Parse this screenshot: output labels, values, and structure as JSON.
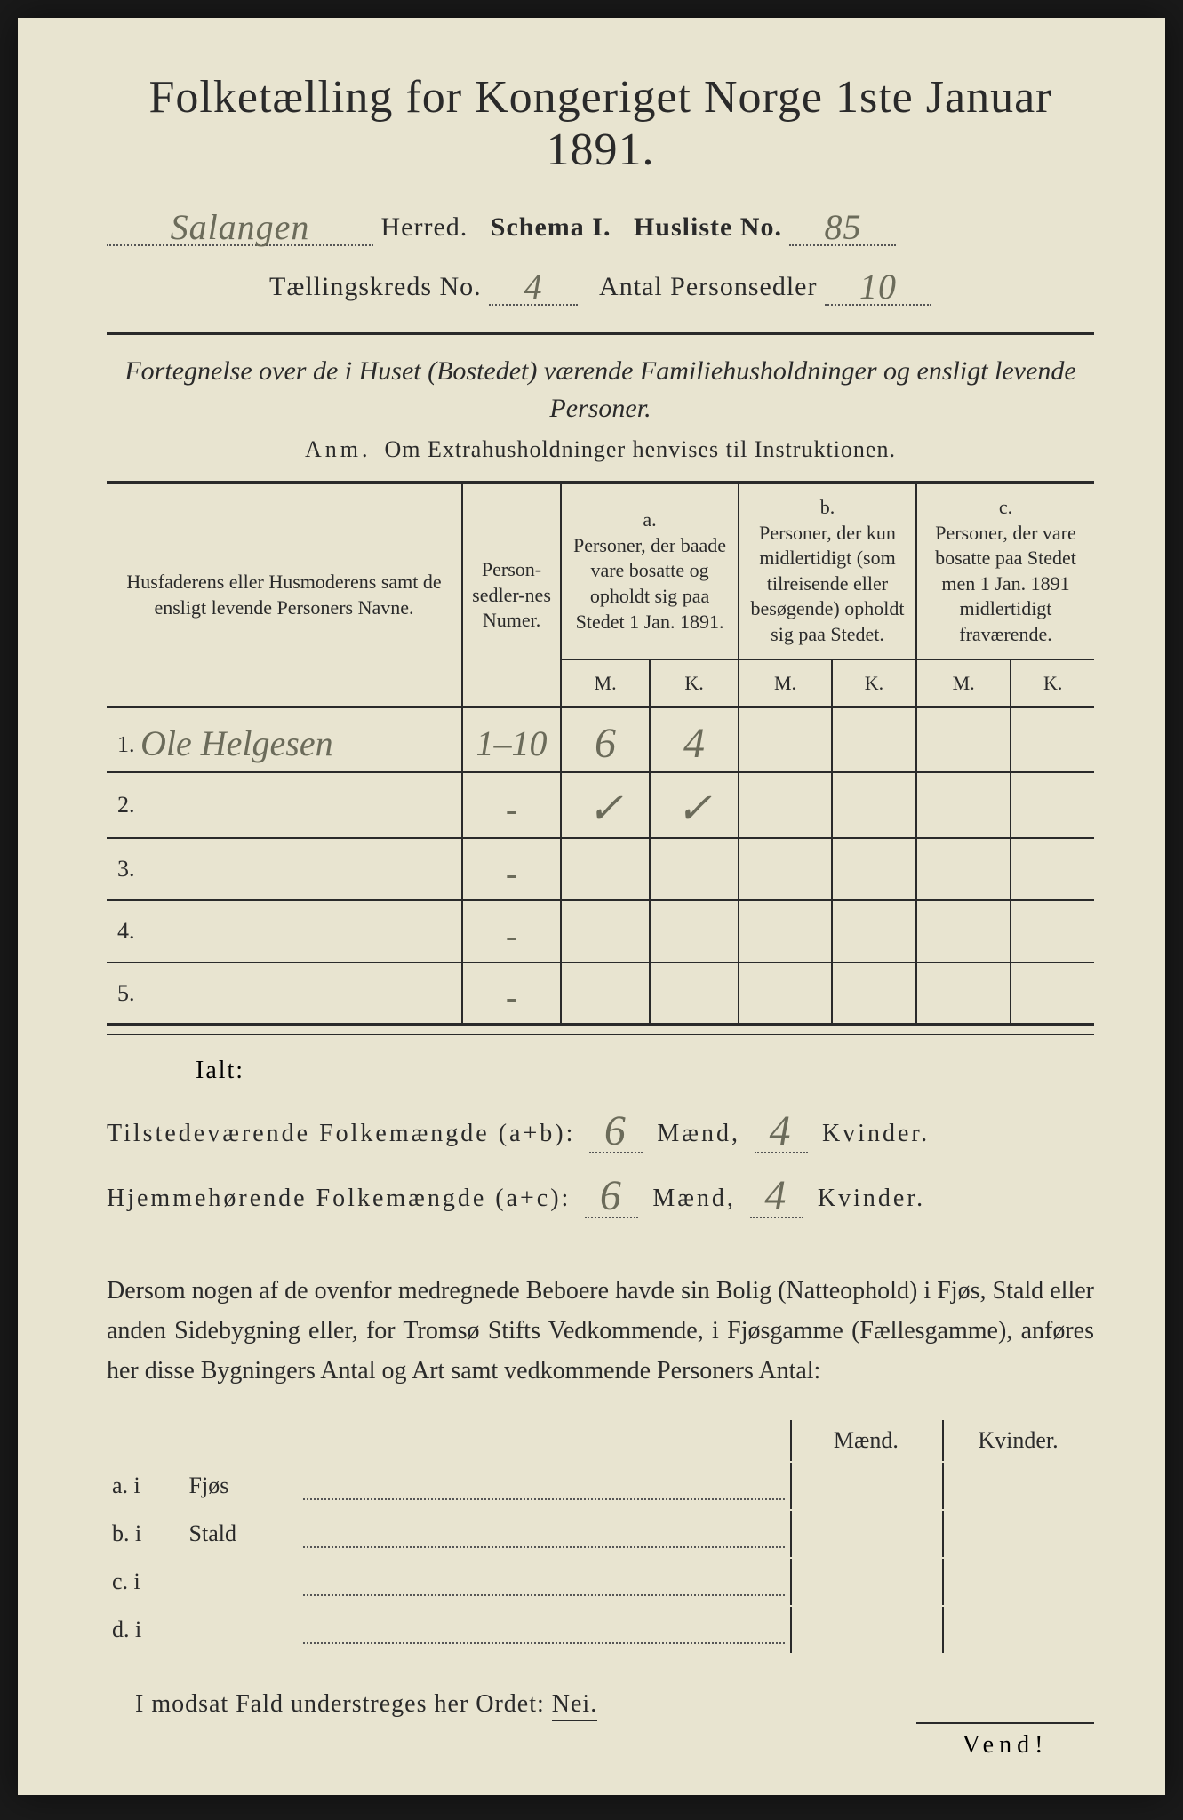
{
  "title": "Folketælling for Kongeriget Norge 1ste Januar 1891.",
  "header": {
    "herred_value": "Salangen",
    "herred_label": "Herred.",
    "schema_label": "Schema I.",
    "husliste_label": "Husliste No.",
    "husliste_value": "85",
    "kreds_label": "Tællingskreds No.",
    "kreds_value": "4",
    "personsedler_label": "Antal Personsedler",
    "personsedler_value": "10"
  },
  "subtitle": "Fortegnelse over de i Huset (Bostedet) værende Familiehusholdninger og ensligt levende Personer.",
  "anm_label": "Anm.",
  "anm_text": "Om Extrahusholdninger henvises til Instruktionen.",
  "columns": {
    "name": "Husfaderens eller Husmoderens samt de ensligt levende Personers Navne.",
    "num": "Person-sedler-nes Numer.",
    "a_label": "a.",
    "a_text": "Personer, der baade vare bosatte og opholdt sig paa Stedet 1 Jan. 1891.",
    "b_label": "b.",
    "b_text": "Personer, der kun midlertidigt (som tilreisende eller besøgende) opholdt sig paa Stedet.",
    "c_label": "c.",
    "c_text": "Personer, der vare bosatte paa Stedet men 1 Jan. 1891 midlertidigt fraværende.",
    "m": "M.",
    "k": "K."
  },
  "rows": [
    {
      "n": "1.",
      "name": "Ole Helgesen",
      "num": "1–10",
      "aM": "6",
      "aK": "4",
      "bM": "",
      "bK": "",
      "cM": "",
      "cK": ""
    },
    {
      "n": "2.",
      "name": "",
      "num": "-",
      "aM": "✓",
      "aK": "✓",
      "bM": "",
      "bK": "",
      "cM": "",
      "cK": ""
    },
    {
      "n": "3.",
      "name": "",
      "num": "-",
      "aM": "",
      "aK": "",
      "bM": "",
      "bK": "",
      "cM": "",
      "cK": ""
    },
    {
      "n": "4.",
      "name": "",
      "num": "-",
      "aM": "",
      "aK": "",
      "bM": "",
      "bK": "",
      "cM": "",
      "cK": ""
    },
    {
      "n": "5.",
      "name": "",
      "num": "-",
      "aM": "",
      "aK": "",
      "bM": "",
      "bK": "",
      "cM": "",
      "cK": ""
    }
  ],
  "ialt": "Ialt:",
  "sum1": {
    "label": "Tilstedeværende Folkemængde (a+b):",
    "m": "6",
    "mlabel": "Mænd,",
    "k": "4",
    "klabel": "Kvinder."
  },
  "sum2": {
    "label": "Hjemmehørende Folkemængde (a+c):",
    "m": "6",
    "mlabel": "Mænd,",
    "k": "4",
    "klabel": "Kvinder."
  },
  "paragraph": "Dersom nogen af de ovenfor medregnede Beboere havde sin Bolig (Natteophold) i Fjøs, Stald eller anden Sidebygning eller, for Tromsø Stifts Vedkommende, i Fjøsgamme (Fællesgamme), anføres her disse Bygningers Antal og Art samt vedkommende Personers Antal:",
  "outbuild": {
    "maend": "Mænd.",
    "kvinder": "Kvinder.",
    "rows": [
      {
        "l": "a.  i",
        "t": "Fjøs"
      },
      {
        "l": "b.  i",
        "t": "Stald"
      },
      {
        "l": "c.  i",
        "t": ""
      },
      {
        "l": "d.  i",
        "t": ""
      }
    ]
  },
  "nei": {
    "pre": "I modsat Fald understreges her Ordet: ",
    "word": "Nei."
  },
  "vend": "Vend!"
}
